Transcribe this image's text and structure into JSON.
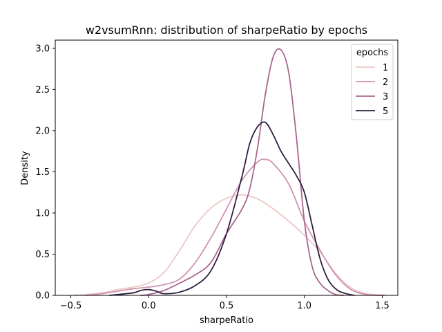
{
  "chart_data": {
    "type": "line",
    "title": "w2vsumRnn: distribution of sharpeRatio by epochs",
    "xlabel": "sharpeRatio",
    "ylabel": "Density",
    "xlim": [
      -0.6,
      1.6
    ],
    "ylim": [
      0.0,
      3.1
    ],
    "xticks": [
      -0.5,
      0.0,
      0.5,
      1.0,
      1.5
    ],
    "xtick_labels": [
      "−0.5",
      "0.0",
      "0.5",
      "1.0",
      "1.5"
    ],
    "yticks": [
      0.0,
      0.5,
      1.0,
      1.5,
      2.0,
      2.5,
      3.0
    ],
    "ytick_labels": [
      "0.0",
      "0.5",
      "1.0",
      "1.5",
      "2.0",
      "2.5",
      "3.0"
    ],
    "grid": false,
    "legend": {
      "title": "epochs",
      "placement": "top-right"
    },
    "series": [
      {
        "name": "1",
        "color": "#ebc8c5",
        "x": [
          -0.48,
          -0.4,
          -0.3,
          -0.2,
          -0.1,
          0.0,
          0.1,
          0.2,
          0.3,
          0.4,
          0.5,
          0.6,
          0.7,
          0.8,
          0.9,
          1.0,
          1.1,
          1.2,
          1.3,
          1.4,
          1.52
        ],
        "y": [
          0.0,
          0.01,
          0.03,
          0.07,
          0.1,
          0.15,
          0.28,
          0.55,
          0.85,
          1.06,
          1.18,
          1.22,
          1.17,
          1.05,
          0.9,
          0.73,
          0.53,
          0.27,
          0.09,
          0.02,
          0.0
        ]
      },
      {
        "name": "2",
        "color": "#d193ad",
        "x": [
          -0.4,
          -0.3,
          -0.2,
          -0.1,
          0.0,
          0.1,
          0.2,
          0.3,
          0.4,
          0.5,
          0.6,
          0.7,
          0.75,
          0.8,
          0.9,
          1.0,
          1.1,
          1.2,
          1.3,
          1.4,
          1.5
        ],
        "y": [
          0.0,
          0.02,
          0.05,
          0.08,
          0.1,
          0.13,
          0.2,
          0.4,
          0.7,
          1.05,
          1.4,
          1.62,
          1.65,
          1.6,
          1.35,
          0.9,
          0.55,
          0.25,
          0.07,
          0.01,
          0.0
        ]
      },
      {
        "name": "3",
        "color": "#a9658f",
        "x": [
          -0.05,
          0.0,
          0.1,
          0.2,
          0.3,
          0.4,
          0.5,
          0.6,
          0.65,
          0.7,
          0.75,
          0.8,
          0.85,
          0.9,
          0.95,
          1.0,
          1.05,
          1.1,
          1.15,
          1.2,
          1.25
        ],
        "y": [
          0.0,
          0.01,
          0.06,
          0.15,
          0.25,
          0.4,
          0.75,
          1.05,
          1.3,
          1.8,
          2.45,
          2.9,
          2.98,
          2.7,
          1.9,
          0.9,
          0.35,
          0.15,
          0.06,
          0.01,
          0.0
        ]
      },
      {
        "name": "5",
        "color": "#2d1e3e",
        "x": [
          -0.25,
          -0.1,
          -0.05,
          0.0,
          0.05,
          0.1,
          0.2,
          0.3,
          0.4,
          0.5,
          0.6,
          0.65,
          0.7,
          0.75,
          0.8,
          0.85,
          0.9,
          0.95,
          1.0,
          1.05,
          1.1,
          1.15,
          1.2,
          1.25,
          1.32
        ],
        "y": [
          0.0,
          0.03,
          0.06,
          0.07,
          0.05,
          0.02,
          0.04,
          0.12,
          0.3,
          0.75,
          1.45,
          1.85,
          2.05,
          2.1,
          1.95,
          1.75,
          1.6,
          1.45,
          1.25,
          0.85,
          0.45,
          0.2,
          0.08,
          0.03,
          0.0
        ]
      }
    ]
  }
}
